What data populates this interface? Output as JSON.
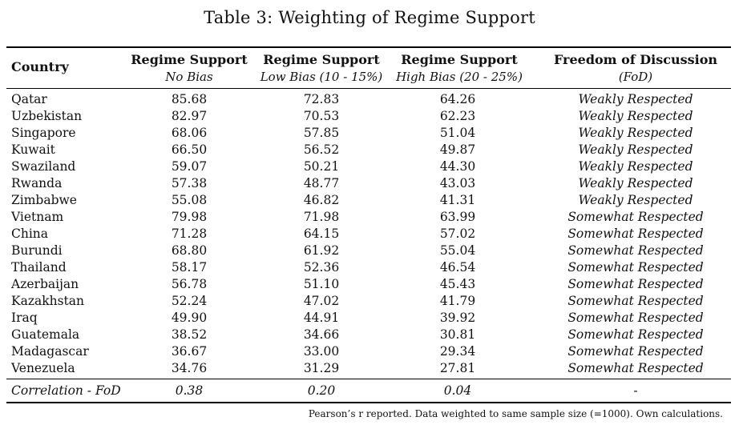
{
  "caption": "Table 3:  Weighting of Regime Support",
  "headers": {
    "country": "Country",
    "no_bias": {
      "title": "Regime Support",
      "sub": "No Bias"
    },
    "low_bias": {
      "title": "Regime Support",
      "sub": "Low Bias (10 - 15%)"
    },
    "high_bias": {
      "title": "Regime Support",
      "sub": "High Bias (20 - 25%)"
    },
    "fod": {
      "title": "Freedom of Discussion",
      "sub": "(FoD)"
    }
  },
  "rows": [
    {
      "country": "Qatar",
      "no_bias": "85.68",
      "low_bias": "72.83",
      "high_bias": "64.26",
      "fod": "Weakly Respected"
    },
    {
      "country": "Uzbekistan",
      "no_bias": "82.97",
      "low_bias": "70.53",
      "high_bias": "62.23",
      "fod": "Weakly Respected"
    },
    {
      "country": "Singapore",
      "no_bias": "68.06",
      "low_bias": "57.85",
      "high_bias": "51.04",
      "fod": "Weakly Respected"
    },
    {
      "country": "Kuwait",
      "no_bias": "66.50",
      "low_bias": "56.52",
      "high_bias": "49.87",
      "fod": "Weakly Respected"
    },
    {
      "country": "Swaziland",
      "no_bias": "59.07",
      "low_bias": "50.21",
      "high_bias": "44.30",
      "fod": "Weakly Respected"
    },
    {
      "country": "Rwanda",
      "no_bias": "57.38",
      "low_bias": "48.77",
      "high_bias": "43.03",
      "fod": "Weakly Respected"
    },
    {
      "country": "Zimbabwe",
      "no_bias": "55.08",
      "low_bias": "46.82",
      "high_bias": "41.31",
      "fod": "Weakly Respected"
    },
    {
      "country": "Vietnam",
      "no_bias": "79.98",
      "low_bias": "71.98",
      "high_bias": "63.99",
      "fod": "Somewhat Respected"
    },
    {
      "country": "China",
      "no_bias": "71.28",
      "low_bias": "64.15",
      "high_bias": "57.02",
      "fod": "Somewhat Respected"
    },
    {
      "country": "Burundi",
      "no_bias": "68.80",
      "low_bias": "61.92",
      "high_bias": "55.04",
      "fod": "Somewhat Respected"
    },
    {
      "country": "Thailand",
      "no_bias": "58.17",
      "low_bias": "52.36",
      "high_bias": "46.54",
      "fod": "Somewhat Respected"
    },
    {
      "country": "Azerbaijan",
      "no_bias": "56.78",
      "low_bias": "51.10",
      "high_bias": "45.43",
      "fod": "Somewhat Respected"
    },
    {
      "country": "Kazakhstan",
      "no_bias": "52.24",
      "low_bias": "47.02",
      "high_bias": "41.79",
      "fod": "Somewhat Respected"
    },
    {
      "country": "Iraq",
      "no_bias": "49.90",
      "low_bias": "44.91",
      "high_bias": "39.92",
      "fod": "Somewhat Respected"
    },
    {
      "country": "Guatemala",
      "no_bias": "38.52",
      "low_bias": "34.66",
      "high_bias": "30.81",
      "fod": "Somewhat Respected"
    },
    {
      "country": "Madagascar",
      "no_bias": "36.67",
      "low_bias": "33.00",
      "high_bias": "29.34",
      "fod": "Somewhat Respected"
    },
    {
      "country": "Venezuela",
      "no_bias": "34.76",
      "low_bias": "31.29",
      "high_bias": "27.81",
      "fod": "Somewhat Respected"
    }
  ],
  "correlation": {
    "label": "Correlation - FoD",
    "no_bias": "0.38",
    "low_bias": "0.20",
    "high_bias": "0.04",
    "fod": "-"
  },
  "note": "Pearson’s r reported. Data weighted to same sample size (=1000). Own calculations."
}
